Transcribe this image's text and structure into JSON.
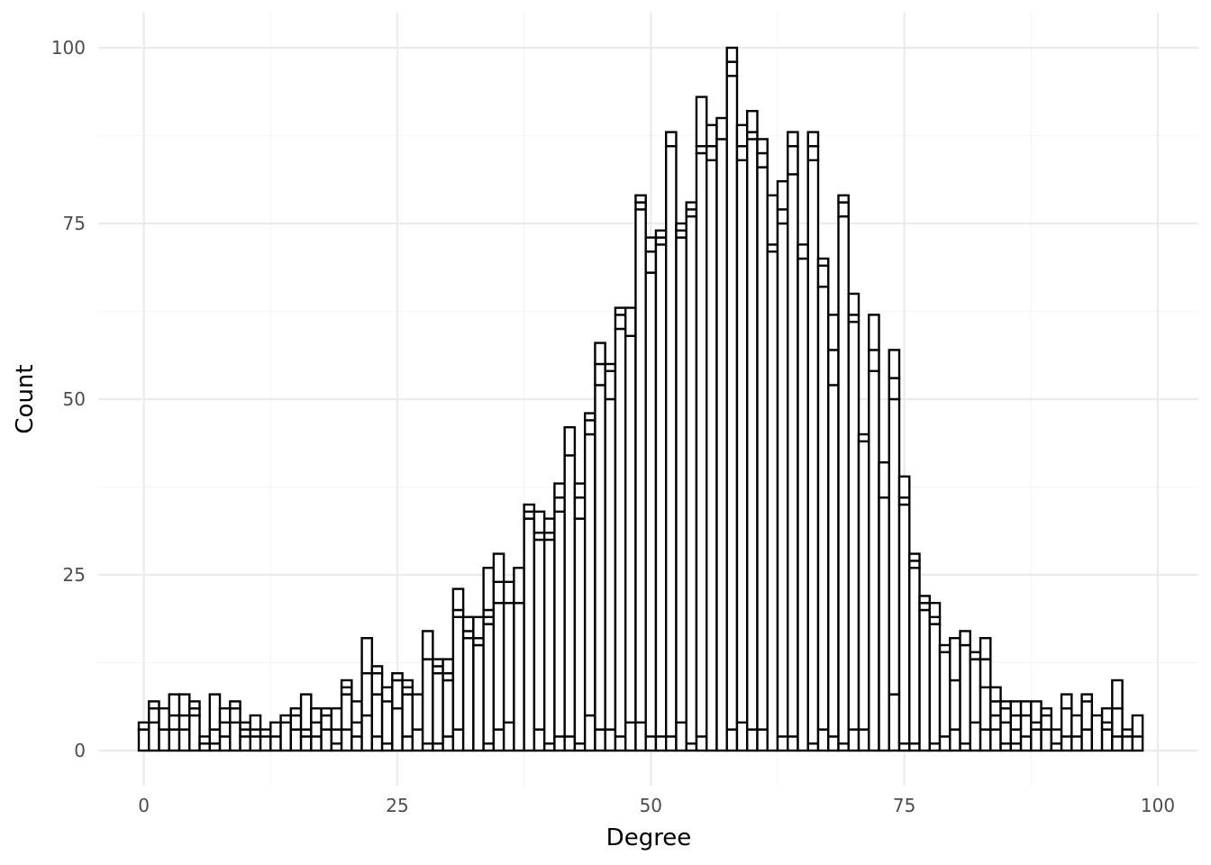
{
  "chart_data": {
    "type": "bar",
    "subtype": "stacked histogram (outlined, unfilled, binwidth 1)",
    "title": "",
    "xlabel": "Degree",
    "ylabel": "Count",
    "xlim": [
      -4.5,
      104
    ],
    "ylim": [
      -5,
      105
    ],
    "x_ticks": [
      0,
      25,
      50,
      75,
      100
    ],
    "x_tick_labels": [
      "0",
      "25",
      "50",
      "75",
      "100"
    ],
    "y_ticks": [
      0,
      25,
      50,
      75,
      100
    ],
    "y_tick_labels": [
      "0",
      "25",
      "50",
      "75",
      "100"
    ],
    "grid": true,
    "legend": "none",
    "colors": {
      "bar_stroke": "#000000",
      "bar_fill": "#ffffff",
      "grid_major": "#ebebeb",
      "grid_minor": "#f5f5f5",
      "tick_text": "#4d4d4d"
    },
    "bins": [
      {
        "x": 0,
        "segments": [
          3,
          4
        ]
      },
      {
        "x": 1,
        "segments": [
          4,
          6,
          7
        ]
      },
      {
        "x": 2,
        "segments": [
          3,
          6
        ]
      },
      {
        "x": 3,
        "segments": [
          3,
          5,
          8
        ]
      },
      {
        "x": 4,
        "segments": [
          3,
          5,
          8
        ]
      },
      {
        "x": 5,
        "segments": [
          5,
          6,
          7
        ]
      },
      {
        "x": 6,
        "segments": [
          1,
          2
        ]
      },
      {
        "x": 7,
        "segments": [
          1,
          3,
          8
        ]
      },
      {
        "x": 8,
        "segments": [
          2,
          4,
          6
        ]
      },
      {
        "x": 9,
        "segments": [
          4,
          6,
          7
        ]
      },
      {
        "x": 10,
        "segments": [
          2,
          3,
          4
        ]
      },
      {
        "x": 11,
        "segments": [
          2,
          3,
          5
        ]
      },
      {
        "x": 12,
        "segments": [
          2,
          3
        ]
      },
      {
        "x": 13,
        "segments": [
          2,
          4
        ]
      },
      {
        "x": 14,
        "segments": [
          4,
          5
        ]
      },
      {
        "x": 15,
        "segments": [
          3,
          5,
          6
        ]
      },
      {
        "x": 16,
        "segments": [
          2,
          3,
          8
        ]
      },
      {
        "x": 17,
        "segments": [
          2,
          4,
          6
        ]
      },
      {
        "x": 18,
        "segments": [
          3,
          5,
          6
        ]
      },
      {
        "x": 19,
        "segments": [
          1,
          3,
          6
        ]
      },
      {
        "x": 20,
        "segments": [
          3,
          8,
          9,
          10
        ]
      },
      {
        "x": 21,
        "segments": [
          2,
          4,
          7
        ]
      },
      {
        "x": 22,
        "segments": [
          5,
          11,
          16
        ]
      },
      {
        "x": 23,
        "segments": [
          2,
          8,
          11,
          12
        ]
      },
      {
        "x": 24,
        "segments": [
          1,
          7,
          9
        ]
      },
      {
        "x": 25,
        "segments": [
          6,
          10,
          11
        ]
      },
      {
        "x": 26,
        "segments": [
          2,
          8,
          9,
          10
        ]
      },
      {
        "x": 27,
        "segments": [
          3,
          8
        ]
      },
      {
        "x": 28,
        "segments": [
          1,
          13,
          17
        ]
      },
      {
        "x": 29,
        "segments": [
          1,
          11,
          12,
          13
        ]
      },
      {
        "x": 30,
        "segments": [
          2,
          10,
          11,
          13
        ]
      },
      {
        "x": 31,
        "segments": [
          3,
          19,
          20,
          23
        ]
      },
      {
        "x": 32,
        "segments": [
          16,
          17,
          19
        ]
      },
      {
        "x": 33,
        "segments": [
          15,
          16,
          19
        ]
      },
      {
        "x": 34,
        "segments": [
          1,
          18,
          19,
          20,
          26
        ]
      },
      {
        "x": 35,
        "segments": [
          3,
          21,
          24,
          28
        ]
      },
      {
        "x": 36,
        "segments": [
          4,
          21,
          24
        ]
      },
      {
        "x": 37,
        "segments": [
          21,
          26
        ]
      },
      {
        "x": 38,
        "segments": [
          33,
          34,
          35
        ]
      },
      {
        "x": 39,
        "segments": [
          3,
          30,
          31,
          34
        ]
      },
      {
        "x": 40,
        "segments": [
          1,
          30,
          31,
          33
        ]
      },
      {
        "x": 41,
        "segments": [
          2,
          34,
          36,
          38
        ]
      },
      {
        "x": 42,
        "segments": [
          2,
          42,
          46
        ]
      },
      {
        "x": 43,
        "segments": [
          1,
          33,
          36,
          38
        ]
      },
      {
        "x": 44,
        "segments": [
          5,
          45,
          47,
          48
        ]
      },
      {
        "x": 45,
        "segments": [
          3,
          52,
          55,
          58
        ]
      },
      {
        "x": 46,
        "segments": [
          3,
          50,
          54,
          55
        ]
      },
      {
        "x": 47,
        "segments": [
          2,
          60,
          62,
          63
        ]
      },
      {
        "x": 48,
        "segments": [
          4,
          59,
          63
        ]
      },
      {
        "x": 49,
        "segments": [
          4,
          77,
          78,
          79
        ]
      },
      {
        "x": 50,
        "segments": [
          2,
          68,
          71,
          73
        ]
      },
      {
        "x": 51,
        "segments": [
          2,
          72,
          73,
          74
        ]
      },
      {
        "x": 52,
        "segments": [
          2,
          86,
          88
        ]
      },
      {
        "x": 53,
        "segments": [
          4,
          73,
          74,
          75
        ]
      },
      {
        "x": 54,
        "segments": [
          1,
          76,
          77,
          78
        ]
      },
      {
        "x": 55,
        "segments": [
          2,
          85,
          86,
          93
        ]
      },
      {
        "x": 56,
        "segments": [
          84,
          86,
          89
        ]
      },
      {
        "x": 57,
        "segments": [
          87,
          90
        ]
      },
      {
        "x": 58,
        "segments": [
          3,
          96,
          98,
          100
        ]
      },
      {
        "x": 59,
        "segments": [
          4,
          84,
          86,
          89
        ]
      },
      {
        "x": 60,
        "segments": [
          3,
          87,
          88,
          91
        ]
      },
      {
        "x": 61,
        "segments": [
          3,
          83,
          85,
          87
        ]
      },
      {
        "x": 62,
        "segments": [
          71,
          72,
          79
        ]
      },
      {
        "x": 63,
        "segments": [
          2,
          75,
          77,
          81
        ]
      },
      {
        "x": 64,
        "segments": [
          2,
          82,
          86,
          88
        ]
      },
      {
        "x": 65,
        "segments": [
          70,
          72
        ]
      },
      {
        "x": 66,
        "segments": [
          1,
          84,
          86,
          88
        ]
      },
      {
        "x": 67,
        "segments": [
          3,
          66,
          69,
          70
        ]
      },
      {
        "x": 68,
        "segments": [
          2,
          52,
          57,
          62
        ]
      },
      {
        "x": 69,
        "segments": [
          1,
          76,
          78,
          79
        ]
      },
      {
        "x": 70,
        "segments": [
          3,
          61,
          62,
          65
        ]
      },
      {
        "x": 71,
        "segments": [
          3,
          44,
          45
        ]
      },
      {
        "x": 72,
        "segments": [
          54,
          57,
          62
        ]
      },
      {
        "x": 73,
        "segments": [
          36,
          41
        ]
      },
      {
        "x": 74,
        "segments": [
          8,
          50,
          53,
          57
        ]
      },
      {
        "x": 75,
        "segments": [
          1,
          35,
          36,
          39
        ]
      },
      {
        "x": 76,
        "segments": [
          1,
          26,
          27,
          28
        ]
      },
      {
        "x": 77,
        "segments": [
          20,
          21,
          22
        ]
      },
      {
        "x": 78,
        "segments": [
          1,
          18,
          19,
          21
        ]
      },
      {
        "x": 79,
        "segments": [
          2,
          14,
          15
        ]
      },
      {
        "x": 80,
        "segments": [
          3,
          10,
          16
        ]
      },
      {
        "x": 81,
        "segments": [
          1,
          15,
          17
        ]
      },
      {
        "x": 82,
        "segments": [
          4,
          13,
          14
        ]
      },
      {
        "x": 83,
        "segments": [
          3,
          9,
          13,
          16
        ]
      },
      {
        "x": 84,
        "segments": [
          3,
          5,
          7,
          9
        ]
      },
      {
        "x": 85,
        "segments": [
          1,
          4,
          6,
          7
        ]
      },
      {
        "x": 86,
        "segments": [
          1,
          3,
          5,
          7
        ]
      },
      {
        "x": 87,
        "segments": [
          2,
          5,
          7
        ]
      },
      {
        "x": 88,
        "segments": [
          3,
          4,
          7
        ]
      },
      {
        "x": 89,
        "segments": [
          3,
          5,
          6
        ]
      },
      {
        "x": 90,
        "segments": [
          1,
          3
        ]
      },
      {
        "x": 91,
        "segments": [
          2,
          6,
          8
        ]
      },
      {
        "x": 92,
        "segments": [
          2,
          5
        ]
      },
      {
        "x": 93,
        "segments": [
          3,
          7,
          8
        ]
      },
      {
        "x": 94,
        "segments": [
          5
        ]
      },
      {
        "x": 95,
        "segments": [
          3,
          4,
          6
        ]
      },
      {
        "x": 96,
        "segments": [
          2,
          6,
          10
        ]
      },
      {
        "x": 97,
        "segments": [
          2,
          3
        ]
      },
      {
        "x": 98,
        "segments": [
          2,
          5
        ]
      }
    ]
  }
}
